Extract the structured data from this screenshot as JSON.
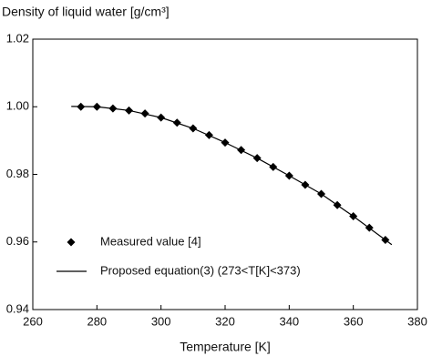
{
  "chart_data": {
    "type": "scatter-line",
    "title": "Density of liquid water [g/cm³]",
    "x_label": "Temperature [K]",
    "xlim": [
      260,
      380
    ],
    "xticks": [
      260,
      280,
      300,
      320,
      340,
      360,
      380
    ],
    "ylim": [
      0.94,
      1.02
    ],
    "yticks": [
      0.94,
      0.96,
      0.98,
      {
        "value": 1,
        "label": "1.00"
      },
      1.02
    ],
    "grid": false,
    "legend": "lower left",
    "series": [
      {
        "name": "Measured value [4]",
        "color": "#000000",
        "marker": "diamond",
        "x": [
          275,
          280,
          285,
          290,
          295,
          300,
          305,
          310,
          315,
          320,
          325,
          330,
          335,
          340,
          345,
          350,
          355,
          360,
          365,
          370
        ],
        "values": [
          1.0,
          1.0,
          0.9995,
          0.9989,
          0.998,
          0.9968,
          0.9953,
          0.9936,
          0.9916,
          0.9894,
          0.9872,
          0.9848,
          0.9822,
          0.9796,
          0.9769,
          0.9742,
          0.9709,
          0.9676,
          0.9642,
          0.9606
        ]
      },
      {
        "name": "Proposed equation(3) (273<T[K]<373)",
        "color": "#000000",
        "marker": "line",
        "x": [
          272,
          280,
          290,
          300,
          310,
          320,
          330,
          340,
          350,
          360,
          370,
          372
        ],
        "values": [
          1.0001,
          1.0,
          0.9989,
          0.9968,
          0.9936,
          0.9894,
          0.9848,
          0.9796,
          0.9742,
          0.9676,
          0.9606,
          0.9592
        ]
      }
    ]
  }
}
